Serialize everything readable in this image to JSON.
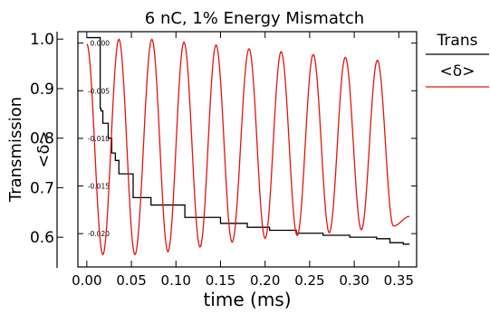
{
  "chart_data": {
    "type": "line",
    "title": "6 nC, 1% Energy Mismatch",
    "xlabel": "time (ms)",
    "ylabel_left": "Transmission",
    "ylabel_inner": "<δ>",
    "xlim": [
      -0.01,
      0.37
    ],
    "ylim_left": [
      0.54,
      1.015
    ],
    "ylim_right": [
      -0.0235,
      0.0012
    ],
    "x_ticks": [
      "0.00",
      "0.05",
      "0.10",
      "0.15",
      "0.20",
      "0.25",
      "0.30",
      "0.35"
    ],
    "x_tick_values": [
      0.0,
      0.05,
      0.1,
      0.15,
      0.2,
      0.25,
      0.3,
      0.35
    ],
    "y_ticks_left": [
      "1.0",
      "0.9",
      "0.8",
      "0.7",
      "0.6"
    ],
    "y_tick_values_left": [
      1.0,
      0.9,
      0.8,
      0.7,
      0.6
    ],
    "y_ticks_right": [
      "0.000",
      "-0.005",
      "-0.010",
      "-0.015",
      "-0.020"
    ],
    "y_tick_values_right": [
      0.0,
      -0.005,
      -0.01,
      -0.015,
      -0.02
    ],
    "grid": false,
    "legend_position": "right",
    "colors": {
      "transmission": "#000000",
      "delta": "#e8130c"
    },
    "series": [
      {
        "name": "Trans",
        "axis": "left",
        "color": "#000000",
        "x": [
          0.0,
          0.007,
          0.013,
          0.015,
          0.016,
          0.018,
          0.02,
          0.024,
          0.028,
          0.032,
          0.036,
          0.042,
          0.048,
          0.052,
          0.06,
          0.068,
          0.072,
          0.08,
          0.09,
          0.1,
          0.11,
          0.125,
          0.14,
          0.15,
          0.165,
          0.18,
          0.19,
          0.205,
          0.22,
          0.235,
          0.25,
          0.265,
          0.28,
          0.295,
          0.31,
          0.325,
          0.34,
          0.355,
          0.362
        ],
        "y": [
          1.003,
          1.003,
          1.003,
          0.86,
          0.855,
          0.83,
          0.83,
          0.8,
          0.77,
          0.755,
          0.728,
          0.728,
          0.728,
          0.68,
          0.68,
          0.68,
          0.665,
          0.665,
          0.665,
          0.665,
          0.64,
          0.64,
          0.64,
          0.628,
          0.628,
          0.62,
          0.62,
          0.614,
          0.614,
          0.608,
          0.608,
          0.604,
          0.604,
          0.6,
          0.6,
          0.597,
          0.589,
          0.586,
          0.586
        ]
      },
      {
        "name": "<δ>",
        "axis": "right",
        "color": "#e8130c",
        "x": [
          0.0,
          0.018,
          0.036,
          0.054,
          0.073,
          0.091,
          0.109,
          0.127,
          0.145,
          0.163,
          0.182,
          0.2,
          0.218,
          0.236,
          0.254,
          0.272,
          0.29,
          0.308,
          0.326,
          0.344,
          0.362
        ],
        "y": [
          -0.0001,
          -0.0222,
          0.0004,
          -0.0222,
          0.0004,
          -0.0219,
          0.0001,
          -0.0214,
          -0.0002,
          -0.0209,
          -0.0006,
          -0.0205,
          -0.0009,
          -0.0202,
          -0.0012,
          -0.0199,
          -0.0015,
          -0.0196,
          -0.0018,
          -0.0192,
          -0.0182
        ]
      }
    ],
    "legend": [
      {
        "label": "Trans",
        "color": "#000000"
      },
      {
        "label": "<δ>",
        "color": "#e8130c"
      }
    ]
  }
}
